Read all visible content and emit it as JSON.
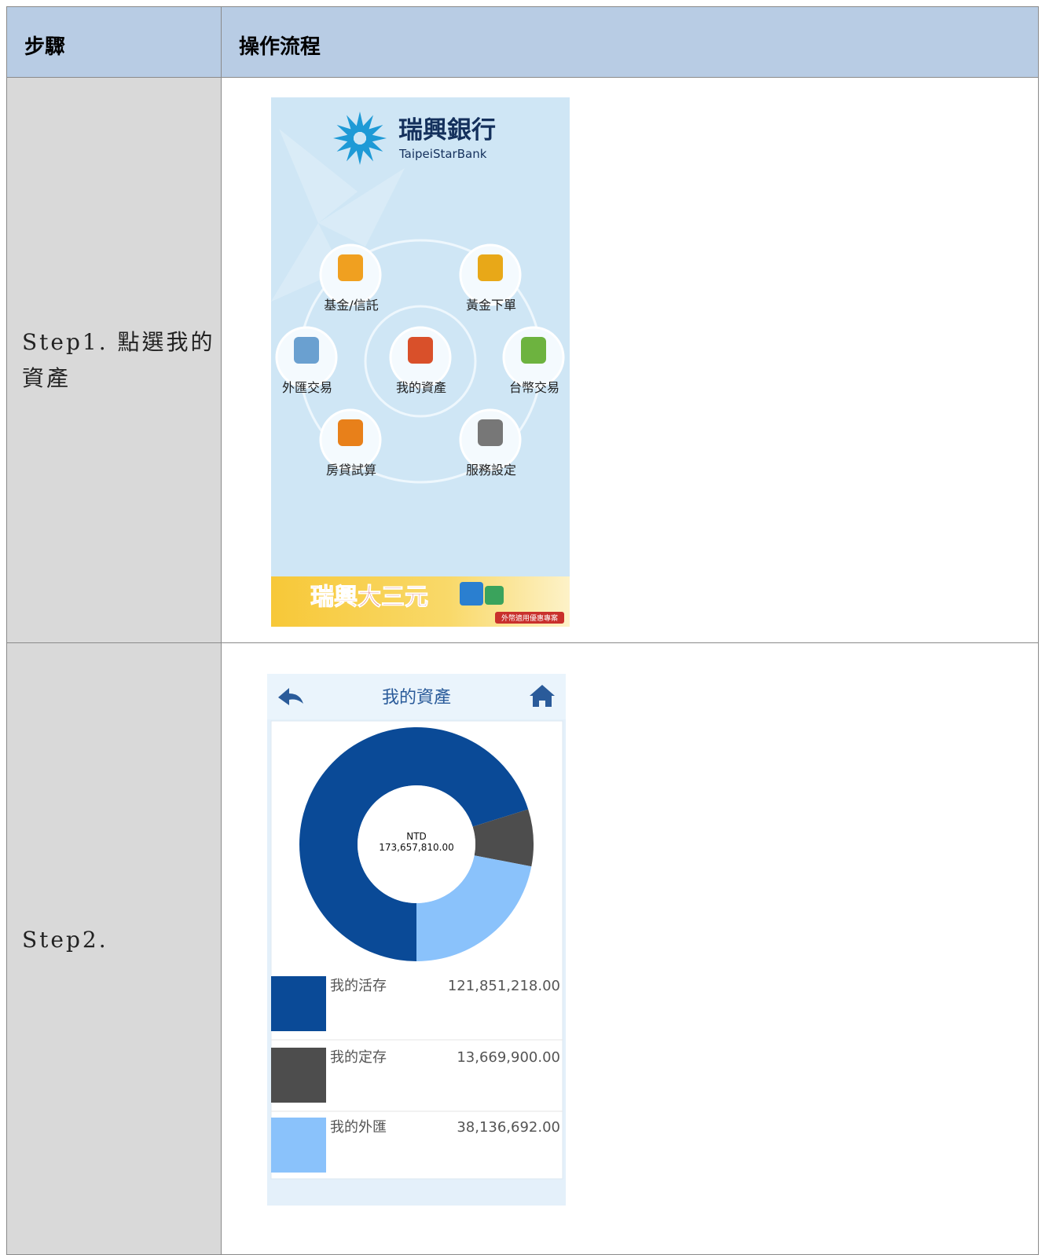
{
  "table": {
    "header": [
      "步驟",
      "操作流程"
    ],
    "rows": [
      {
        "step": "Step1. 點選我的資產",
        "screen": {
          "bank_name": "瑞興銀行",
          "bank_name_en": "TaipeiStarBank",
          "menu": [
            "基金/信託",
            "黃金下單",
            "外匯交易",
            "我的資產",
            "台幣交易",
            "房貸試算",
            "服務設定"
          ],
          "banner": "瑞興大三元",
          "banner_tag": "外幣適用優惠專案"
        }
      },
      {
        "step": "Step2.",
        "screen": {
          "title": "我的資產",
          "currency": "NTD",
          "total": "173,657,810.00",
          "assets": [
            {
              "name": "我的活存",
              "color": "#0a4a97",
              "value": 121851218,
              "value_label": "121,851,218.00"
            },
            {
              "name": "我的定存",
              "color": "#4d4d4d",
              "value": 13669900,
              "value_label": "13,669,900.00"
            },
            {
              "name": "我的外匯",
              "color": "#8ac2fb",
              "value": 38136692,
              "value_label": "38,136,692.00"
            }
          ]
        }
      }
    ]
  }
}
